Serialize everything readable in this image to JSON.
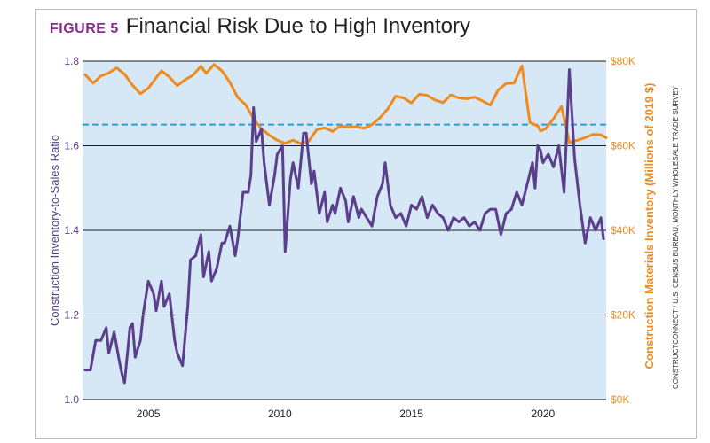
{
  "figure": {
    "label": "FIGURE 5",
    "title": "Financial Risk Due to High Inventory"
  },
  "source_note": "CONSTRUCTCONNECT / U.S. CENSUS BUREAU, MONTHLY WHOLESALE TRADE SURVEY",
  "colors": {
    "plot_bg": "#d6e8f5",
    "ratio_line": "#5b3f8c",
    "inventory_line": "#f08a1e",
    "reference_line": "#2e9ad6",
    "left_axis_text": "#5b3f8c",
    "right_axis_text": "#f08a1e",
    "figure_label": "#8e2a8e"
  },
  "chart_data": {
    "type": "line",
    "title": "Financial Risk Due to High Inventory",
    "xlabel": "",
    "xlim": [
      2002.5,
      2022.4
    ],
    "x_ticks": [
      2005,
      2010,
      2015,
      2020
    ],
    "x_tick_labels": [
      "2005",
      "2010",
      "2015",
      "2020"
    ],
    "y_left": {
      "label": "Construction Inventory-to-Sales Ratio",
      "lim": [
        1.0,
        1.8
      ],
      "ticks": [
        1.0,
        1.2,
        1.4,
        1.6,
        1.8
      ],
      "tick_labels": [
        "1.0",
        "1.2",
        "1.4",
        "1.6",
        "1.8"
      ]
    },
    "y_right": {
      "label": "Construction Materials Inventory (Millions of 2019 $)",
      "lim": [
        0,
        80000
      ],
      "ticks": [
        0,
        20000,
        40000,
        60000,
        80000
      ],
      "tick_labels": [
        "$0K",
        "$20K",
        "$40K",
        "$60K",
        "$80K"
      ]
    },
    "grid": "horizontal",
    "reference_line": {
      "axis": "left",
      "value": 1.65,
      "style": "dashed"
    },
    "series": [
      {
        "name": "Construction Inventory-to-Sales Ratio",
        "axis": "left",
        "x": [
          2002.6,
          2002.8,
          2003.0,
          2003.2,
          2003.4,
          2003.5,
          2003.7,
          2003.9,
          2004.0,
          2004.1,
          2004.3,
          2004.4,
          2004.5,
          2004.7,
          2004.8,
          2005.0,
          2005.2,
          2005.3,
          2005.5,
          2005.6,
          2005.8,
          2006.0,
          2006.1,
          2006.3,
          2006.5,
          2006.6,
          2006.8,
          2007.0,
          2007.1,
          2007.3,
          2007.4,
          2007.6,
          2007.8,
          2007.9,
          2008.1,
          2008.3,
          2008.4,
          2008.6,
          2008.8,
          2008.9,
          2009.0,
          2009.1,
          2009.3,
          2009.4,
          2009.6,
          2009.8,
          2009.9,
          2010.1,
          2010.2,
          2010.4,
          2010.5,
          2010.7,
          2010.9,
          2011.0,
          2011.2,
          2011.3,
          2011.5,
          2011.7,
          2011.8,
          2012.0,
          2012.1,
          2012.3,
          2012.5,
          2012.6,
          2012.8,
          2013.0,
          2013.1,
          2013.3,
          2013.5,
          2013.7,
          2013.9,
          2014.0,
          2014.2,
          2014.4,
          2014.6,
          2014.8,
          2015.0,
          2015.2,
          2015.4,
          2015.6,
          2015.8,
          2016.0,
          2016.2,
          2016.4,
          2016.6,
          2016.8,
          2017.0,
          2017.2,
          2017.4,
          2017.6,
          2017.8,
          2018.0,
          2018.2,
          2018.4,
          2018.6,
          2018.8,
          2019.0,
          2019.2,
          2019.4,
          2019.6,
          2019.7,
          2019.8,
          2019.9,
          2020.0,
          2020.2,
          2020.4,
          2020.6,
          2020.8,
          2021.0,
          2021.2,
          2021.4,
          2021.6,
          2021.8,
          2022.0,
          2022.2,
          2022.3
        ],
        "values": [
          1.07,
          1.07,
          1.14,
          1.14,
          1.17,
          1.11,
          1.16,
          1.09,
          1.06,
          1.04,
          1.17,
          1.18,
          1.1,
          1.14,
          1.2,
          1.28,
          1.25,
          1.21,
          1.28,
          1.22,
          1.25,
          1.14,
          1.11,
          1.08,
          1.22,
          1.33,
          1.34,
          1.39,
          1.29,
          1.35,
          1.28,
          1.31,
          1.37,
          1.37,
          1.41,
          1.34,
          1.38,
          1.49,
          1.49,
          1.53,
          1.69,
          1.61,
          1.64,
          1.56,
          1.46,
          1.53,
          1.58,
          1.6,
          1.35,
          1.52,
          1.56,
          1.5,
          1.63,
          1.63,
          1.51,
          1.54,
          1.44,
          1.49,
          1.42,
          1.46,
          1.44,
          1.5,
          1.47,
          1.42,
          1.48,
          1.43,
          1.45,
          1.43,
          1.41,
          1.48,
          1.51,
          1.56,
          1.46,
          1.43,
          1.44,
          1.41,
          1.46,
          1.45,
          1.48,
          1.43,
          1.46,
          1.44,
          1.43,
          1.4,
          1.43,
          1.42,
          1.43,
          1.41,
          1.42,
          1.4,
          1.44,
          1.45,
          1.45,
          1.39,
          1.44,
          1.45,
          1.49,
          1.46,
          1.51,
          1.56,
          1.5,
          1.6,
          1.59,
          1.56,
          1.58,
          1.55,
          1.6,
          1.49,
          1.78,
          1.57,
          1.46,
          1.37,
          1.43,
          1.4,
          1.43,
          1.38
        ]
      },
      {
        "name": "Construction Materials Inventory",
        "axis": "right",
        "x": [
          2002.6,
          2002.9,
          2003.2,
          2003.5,
          2003.8,
          2004.1,
          2004.4,
          2004.7,
          2005.0,
          2005.3,
          2005.5,
          2005.8,
          2006.1,
          2006.4,
          2006.7,
          2007.0,
          2007.2,
          2007.5,
          2007.8,
          2008.1,
          2008.4,
          2008.7,
          2009.0,
          2009.3,
          2009.6,
          2009.9,
          2010.2,
          2010.5,
          2010.8,
          2011.1,
          2011.4,
          2011.7,
          2012.0,
          2012.3,
          2012.6,
          2012.9,
          2013.2,
          2013.5,
          2013.8,
          2014.1,
          2014.4,
          2014.7,
          2015.0,
          2015.3,
          2015.6,
          2015.9,
          2016.2,
          2016.5,
          2016.8,
          2017.1,
          2017.4,
          2017.7,
          2018.0,
          2018.3,
          2018.6,
          2018.9,
          2019.2,
          2019.5,
          2019.8,
          2019.9,
          2020.1,
          2020.4,
          2020.7,
          2021.0,
          2021.3,
          2021.6,
          2021.9,
          2022.2,
          2022.4
        ],
        "values": [
          76800,
          74800,
          76500,
          77200,
          78400,
          76900,
          74300,
          72300,
          73600,
          76100,
          77700,
          76300,
          74200,
          75600,
          76700,
          78800,
          77100,
          79200,
          77700,
          75000,
          71400,
          69700,
          66400,
          64000,
          62500,
          61300,
          60600,
          61300,
          60500,
          61100,
          63800,
          64200,
          63400,
          64700,
          64400,
          64500,
          64100,
          65000,
          66600,
          68700,
          71700,
          71300,
          70100,
          72200,
          71900,
          70800,
          70200,
          72000,
          71300,
          71100,
          71500,
          70600,
          69600,
          73200,
          74700,
          74800,
          78900,
          65500,
          64700,
          63500,
          64000,
          66400,
          69300,
          60800,
          61300,
          61900,
          62700,
          62600,
          61900
        ]
      }
    ]
  }
}
